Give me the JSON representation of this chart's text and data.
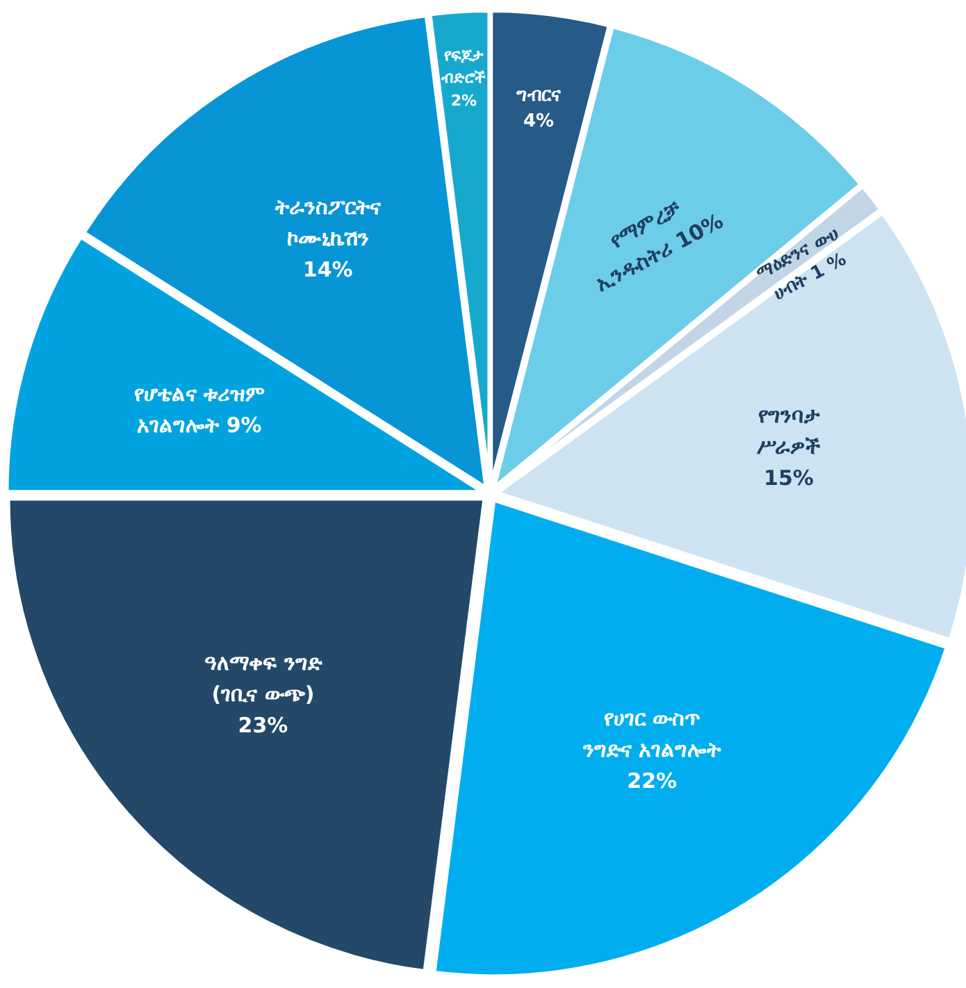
{
  "chart_data": {
    "type": "pie",
    "categories": [
      "የፍጆታ\nብድሮች",
      "ግብርና",
      "የማምረቻ\nኢንዱስትሪ",
      "ማዕድንና ውሀ\nሀብት",
      "የግንባታ\nሥራዎች",
      "የሀገር ውስጥ\nንግድና አገልግሎት",
      "ዓለማቀፍ ንግድ\n(ገቢና ውጭ)",
      "የሆቴልና ቱሪዝም\nአገልግሎት",
      "ትራንስፖርትና\nኮሙኒኬሽን"
    ],
    "values": [
      2,
      4,
      10,
      1,
      15,
      22,
      23,
      9,
      14
    ],
    "value_labels": [
      "2%",
      "4%",
      "10%",
      "1 %",
      "15%",
      "22%",
      "23%",
      "9%",
      "14%"
    ],
    "colors": [
      "#17a9cd",
      "#265a87",
      "#6ccde8",
      "#c1d5e6",
      "#cde3f2",
      "#00aeef",
      "#234869",
      "#00a3e0",
      "#0795d6"
    ]
  }
}
